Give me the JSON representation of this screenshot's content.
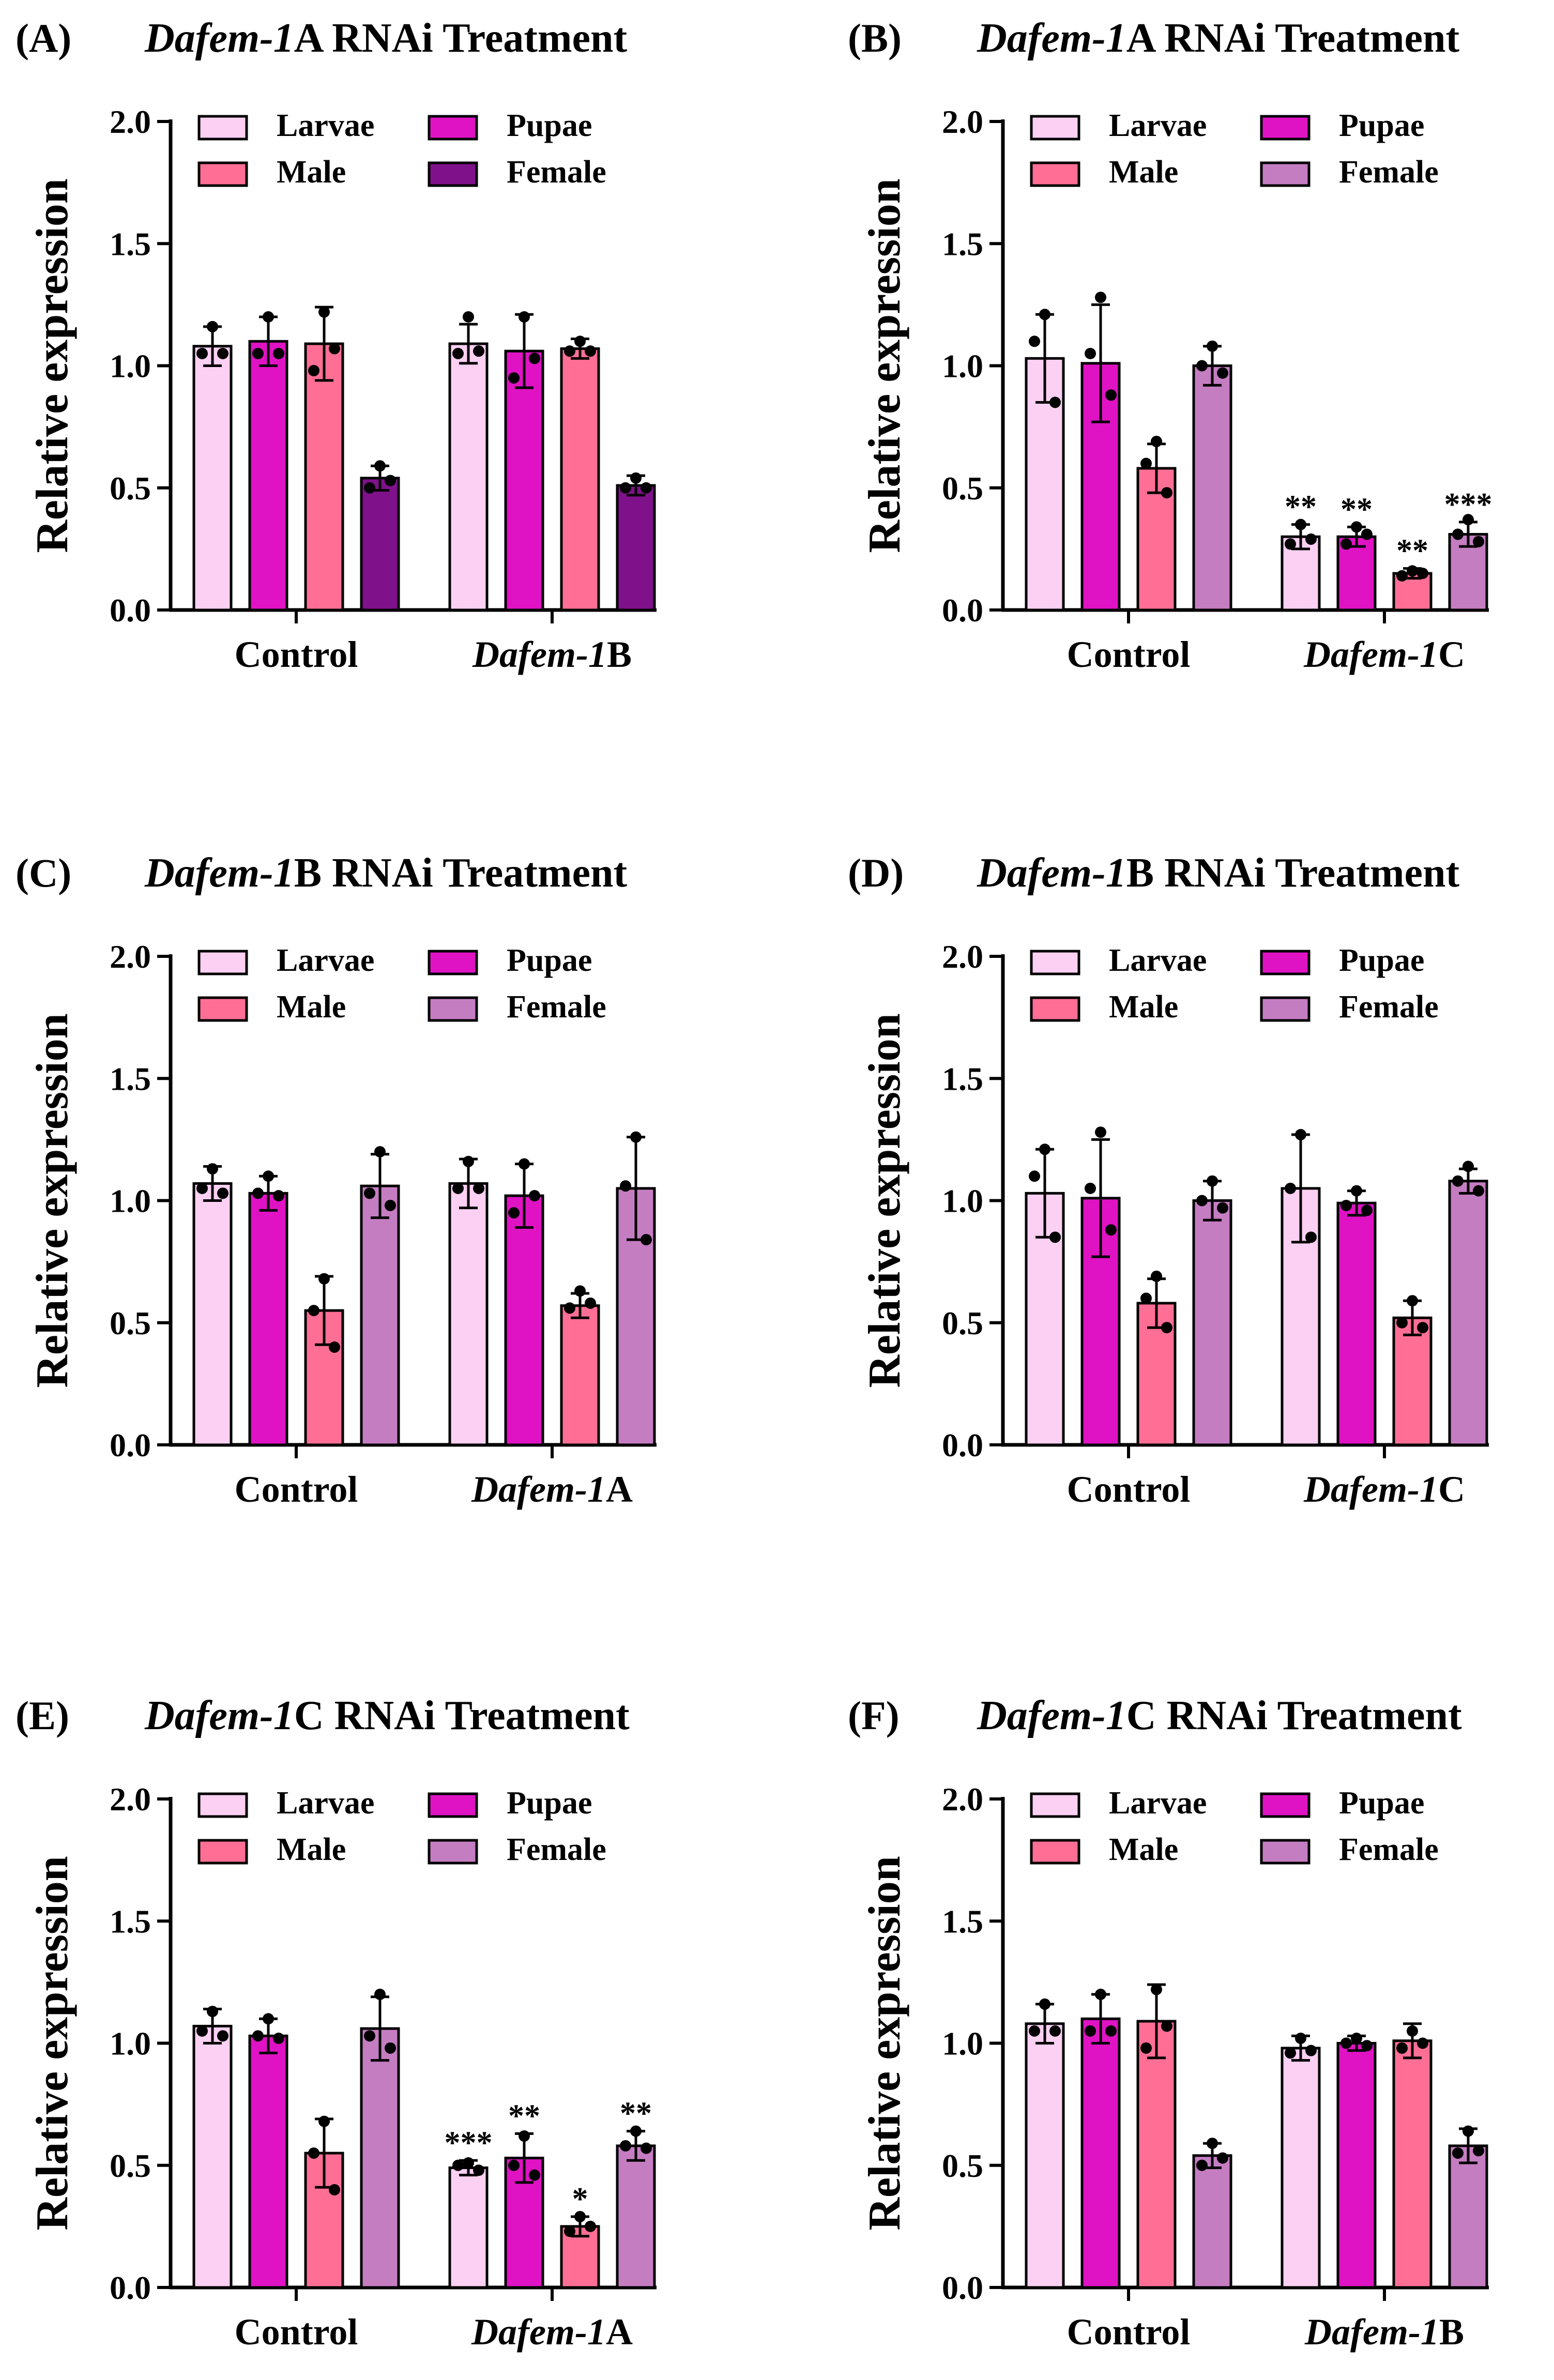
{
  "figure": {
    "y_axis_label": "Relative expression",
    "y_ticks": [
      "0.0",
      "0.5",
      "1.0",
      "1.5",
      "2.0"
    ]
  },
  "legend_labels": [
    "Larvae",
    "Pupae",
    "Male",
    "Female"
  ],
  "colors": {
    "larvae": "#fbd0f2",
    "pupae": "#df13c3",
    "male": "#ff6f95",
    "female_dark": "#7f118a",
    "female_light": "#c57dc2",
    "axis": "#000000"
  },
  "chart_data": [
    {
      "panel": "(A)",
      "type": "bar",
      "title_italic": "Dafem-1",
      "title_rest": "A RNAi Treatment",
      "groups": [
        {
          "label": "Control",
          "italic": "",
          "rest": "Control"
        },
        {
          "label": "Dafem-1B",
          "italic": "Dafem-1",
          "rest": "B"
        }
      ],
      "series": [
        {
          "name": "Larvae",
          "color": "#fbd0f2",
          "values": [
            1.08,
            1.09
          ],
          "errors": [
            0.08,
            0.08
          ]
        },
        {
          "name": "Pupae",
          "color": "#df13c3",
          "values": [
            1.1,
            1.06
          ],
          "errors": [
            0.1,
            0.15
          ]
        },
        {
          "name": "Male",
          "color": "#ff6f95",
          "values": [
            1.09,
            1.07
          ],
          "errors": [
            0.15,
            0.04
          ]
        },
        {
          "name": "Female",
          "color": "#7f118a",
          "values": [
            0.54,
            0.51
          ],
          "errors": [
            0.05,
            0.04
          ]
        }
      ],
      "points": [
        [
          [
            1.05,
            1.16,
            1.05
          ],
          [
            1.05,
            1.2,
            1.06
          ]
        ],
        [
          [
            1.05,
            1.2,
            1.05
          ],
          [
            0.95,
            1.2,
            1.03
          ]
        ],
        [
          [
            0.98,
            1.22,
            1.07
          ],
          [
            1.06,
            1.1,
            1.06
          ]
        ],
        [
          [
            0.5,
            0.59,
            0.53
          ],
          [
            0.5,
            0.54,
            0.5
          ]
        ]
      ],
      "significance": [
        [
          "",
          ""
        ],
        [
          "",
          ""
        ],
        [
          "",
          ""
        ],
        [
          "",
          ""
        ]
      ],
      "ylabel": "Relative expression",
      "ylim": [
        0,
        2.0
      ]
    },
    {
      "panel": "(B)",
      "type": "bar",
      "title_italic": "Dafem-1",
      "title_rest": "A RNAi Treatment",
      "groups": [
        {
          "label": "Control",
          "italic": "",
          "rest": "Control"
        },
        {
          "label": "Dafem-1C",
          "italic": "Dafem-1",
          "rest": "C"
        }
      ],
      "series": [
        {
          "name": "Larvae",
          "color": "#fbd0f2",
          "values": [
            1.03,
            0.3
          ],
          "errors": [
            0.18,
            0.05
          ]
        },
        {
          "name": "Pupae",
          "color": "#df13c3",
          "values": [
            1.01,
            0.3
          ],
          "errors": [
            0.24,
            0.04
          ]
        },
        {
          "name": "Male",
          "color": "#ff6f95",
          "values": [
            0.58,
            0.15
          ],
          "errors": [
            0.1,
            0.02
          ]
        },
        {
          "name": "Female",
          "color": "#c57dc2",
          "values": [
            1.0,
            0.31
          ],
          "errors": [
            0.08,
            0.05
          ]
        }
      ],
      "points": [
        [
          [
            1.1,
            1.21,
            0.85
          ],
          [
            0.27,
            0.35,
            0.29
          ]
        ],
        [
          [
            1.05,
            1.28,
            0.88
          ],
          [
            0.27,
            0.34,
            0.31
          ]
        ],
        [
          [
            0.6,
            0.69,
            0.48
          ],
          [
            0.14,
            0.16,
            0.15
          ]
        ],
        [
          [
            1.0,
            1.08,
            0.97
          ],
          [
            0.31,
            0.37,
            0.28
          ]
        ]
      ],
      "significance": [
        [
          "",
          "**"
        ],
        [
          "",
          "**"
        ],
        [
          "",
          "**"
        ],
        [
          "",
          "***"
        ]
      ],
      "ylabel": "Relative expression",
      "ylim": [
        0,
        2.0
      ]
    },
    {
      "panel": "(C)",
      "type": "bar",
      "title_italic": "Dafem-1",
      "title_rest": "B RNAi Treatment",
      "groups": [
        {
          "label": "Control",
          "italic": "",
          "rest": "Control"
        },
        {
          "label": "Dafem-1A",
          "italic": "Dafem-1",
          "rest": "A"
        }
      ],
      "series": [
        {
          "name": "Larvae",
          "color": "#fbd0f2",
          "values": [
            1.07,
            1.07
          ],
          "errors": [
            0.07,
            0.1
          ]
        },
        {
          "name": "Pupae",
          "color": "#df13c3",
          "values": [
            1.03,
            1.02
          ],
          "errors": [
            0.07,
            0.13
          ]
        },
        {
          "name": "Male",
          "color": "#ff6f95",
          "values": [
            0.55,
            0.57
          ],
          "errors": [
            0.14,
            0.05
          ]
        },
        {
          "name": "Female",
          "color": "#c57dc2",
          "values": [
            1.06,
            1.05
          ],
          "errors": [
            0.13,
            0.21
          ]
        }
      ],
      "points": [
        [
          [
            1.05,
            1.13,
            1.03
          ],
          [
            1.05,
            1.16,
            1.05
          ]
        ],
        [
          [
            1.03,
            1.1,
            1.02
          ],
          [
            0.95,
            1.15,
            1.02
          ]
        ],
        [
          [
            0.55,
            0.68,
            0.4
          ],
          [
            0.56,
            0.63,
            0.58
          ]
        ],
        [
          [
            1.03,
            1.2,
            0.98
          ],
          [
            1.06,
            1.26,
            0.84
          ]
        ]
      ],
      "significance": [
        [
          "",
          ""
        ],
        [
          "",
          ""
        ],
        [
          "",
          ""
        ],
        [
          "",
          ""
        ]
      ],
      "ylabel": "Relative expression",
      "ylim": [
        0,
        2.0
      ]
    },
    {
      "panel": "(D)",
      "type": "bar",
      "title_italic": "Dafem-1",
      "title_rest": "B RNAi Treatment",
      "groups": [
        {
          "label": "Control",
          "italic": "",
          "rest": "Control"
        },
        {
          "label": "Dafem-1C",
          "italic": "Dafem-1",
          "rest": "C"
        }
      ],
      "series": [
        {
          "name": "Larvae",
          "color": "#fbd0f2",
          "values": [
            1.03,
            1.05
          ],
          "errors": [
            0.18,
            0.22
          ]
        },
        {
          "name": "Pupae",
          "color": "#df13c3",
          "values": [
            1.01,
            0.99
          ],
          "errors": [
            0.24,
            0.05
          ]
        },
        {
          "name": "Male",
          "color": "#ff6f95",
          "values": [
            0.58,
            0.52
          ],
          "errors": [
            0.1,
            0.07
          ]
        },
        {
          "name": "Female",
          "color": "#c57dc2",
          "values": [
            1.0,
            1.08
          ],
          "errors": [
            0.08,
            0.05
          ]
        }
      ],
      "points": [
        [
          [
            1.1,
            1.21,
            0.85
          ],
          [
            1.05,
            1.27,
            0.85
          ]
        ],
        [
          [
            1.05,
            1.28,
            0.88
          ],
          [
            0.98,
            1.04,
            0.96
          ]
        ],
        [
          [
            0.6,
            0.69,
            0.48
          ],
          [
            0.5,
            0.59,
            0.48
          ]
        ],
        [
          [
            1.0,
            1.08,
            0.97
          ],
          [
            1.08,
            1.14,
            1.04
          ]
        ]
      ],
      "significance": [
        [
          "",
          ""
        ],
        [
          "",
          ""
        ],
        [
          "",
          ""
        ],
        [
          "",
          ""
        ]
      ],
      "ylabel": "Relative expression",
      "ylim": [
        0,
        2.0
      ]
    },
    {
      "panel": "(E)",
      "type": "bar",
      "title_italic": "Dafem-1",
      "title_rest": "C RNAi Treatment",
      "groups": [
        {
          "label": "Control",
          "italic": "",
          "rest": "Control"
        },
        {
          "label": "Dafem-1A",
          "italic": "Dafem-1",
          "rest": "A"
        }
      ],
      "series": [
        {
          "name": "Larvae",
          "color": "#fbd0f2",
          "values": [
            1.07,
            0.49
          ],
          "errors": [
            0.07,
            0.03
          ]
        },
        {
          "name": "Pupae",
          "color": "#df13c3",
          "values": [
            1.03,
            0.53
          ],
          "errors": [
            0.07,
            0.1
          ]
        },
        {
          "name": "Male",
          "color": "#ff6f95",
          "values": [
            0.55,
            0.25
          ],
          "errors": [
            0.14,
            0.04
          ]
        },
        {
          "name": "Female",
          "color": "#c57dc2",
          "values": [
            1.06,
            0.58
          ],
          "errors": [
            0.13,
            0.06
          ]
        }
      ],
      "points": [
        [
          [
            1.05,
            1.13,
            1.03
          ],
          [
            0.5,
            0.51,
            0.48
          ]
        ],
        [
          [
            1.03,
            1.1,
            1.02
          ],
          [
            0.5,
            0.62,
            0.46
          ]
        ],
        [
          [
            0.55,
            0.68,
            0.4
          ],
          [
            0.23,
            0.29,
            0.25
          ]
        ],
        [
          [
            1.03,
            1.2,
            0.98
          ],
          [
            0.58,
            0.64,
            0.57
          ]
        ]
      ],
      "significance": [
        [
          "",
          "***"
        ],
        [
          "",
          "**"
        ],
        [
          "",
          "*"
        ],
        [
          "",
          "**"
        ]
      ],
      "ylabel": "Relative expression",
      "ylim": [
        0,
        2.0
      ]
    },
    {
      "panel": "(F)",
      "type": "bar",
      "title_italic": "Dafem-1",
      "title_rest": "C RNAi Treatment",
      "groups": [
        {
          "label": "Control",
          "italic": "",
          "rest": "Control"
        },
        {
          "label": "Dafem-1B",
          "italic": "Dafem-1",
          "rest": "B"
        }
      ],
      "series": [
        {
          "name": "Larvae",
          "color": "#fbd0f2",
          "values": [
            1.08,
            0.98
          ],
          "errors": [
            0.08,
            0.05
          ]
        },
        {
          "name": "Pupae",
          "color": "#df13c3",
          "values": [
            1.1,
            1.0
          ],
          "errors": [
            0.1,
            0.03
          ]
        },
        {
          "name": "Male",
          "color": "#ff6f95",
          "values": [
            1.09,
            1.01
          ],
          "errors": [
            0.15,
            0.07
          ]
        },
        {
          "name": "Female",
          "color": "#c57dc2",
          "values": [
            0.54,
            0.58
          ],
          "errors": [
            0.05,
            0.07
          ]
        }
      ],
      "points": [
        [
          [
            1.05,
            1.16,
            1.05
          ],
          [
            0.96,
            1.02,
            0.97
          ]
        ],
        [
          [
            1.05,
            1.2,
            1.05
          ],
          [
            1.0,
            1.02,
            0.99
          ]
        ],
        [
          [
            0.98,
            1.22,
            1.07
          ],
          [
            0.98,
            1.05,
            1.0
          ]
        ],
        [
          [
            0.5,
            0.59,
            0.53
          ],
          [
            0.55,
            0.64,
            0.56
          ]
        ]
      ],
      "significance": [
        [
          "",
          ""
        ],
        [
          "",
          ""
        ],
        [
          "",
          ""
        ],
        [
          "",
          ""
        ]
      ],
      "ylabel": "Relative expression",
      "ylim": [
        0,
        2.0
      ]
    }
  ]
}
